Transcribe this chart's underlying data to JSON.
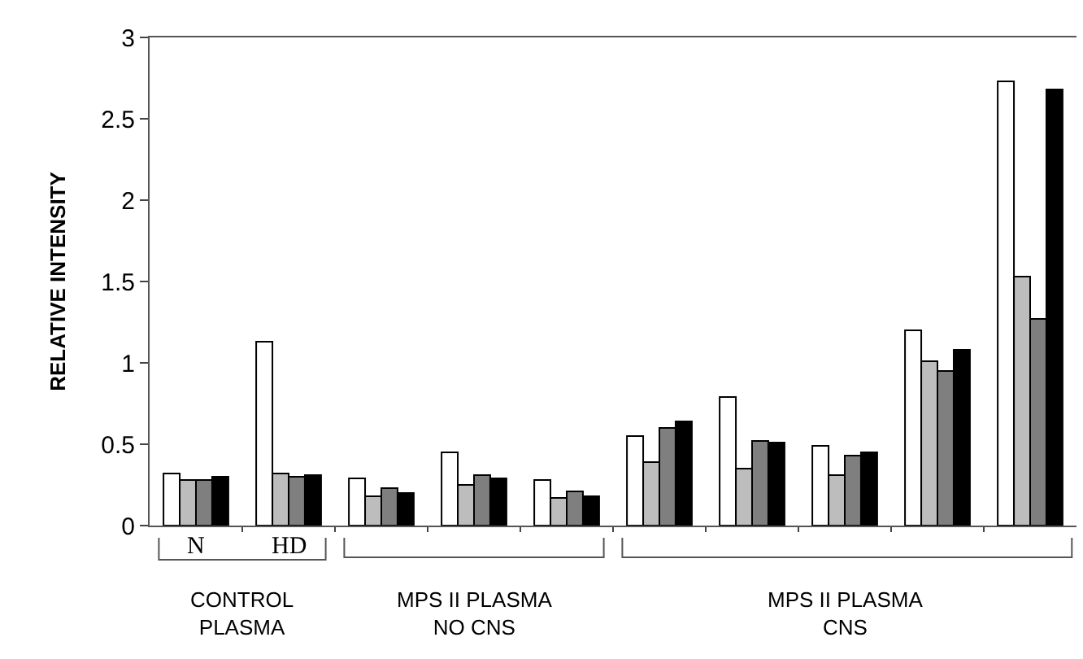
{
  "chart_data": {
    "type": "bar",
    "ylabel": "RELATIVE INTENSITY",
    "categories": [
      null,
      null,
      null,
      null,
      null,
      null,
      null,
      null,
      null,
      null
    ],
    "series": [
      {
        "color": "#ffffff",
        "values": [
          0.32,
          1.13,
          0.29,
          0.45,
          0.28,
          0.55,
          0.79,
          0.49,
          1.2,
          2.73
        ]
      },
      {
        "color": "#bdbdbd",
        "values": [
          0.28,
          0.32,
          0.18,
          0.25,
          0.17,
          0.39,
          0.35,
          0.31,
          1.01,
          1.53
        ]
      },
      {
        "color": "#7f7f7f",
        "values": [
          0.28,
          0.3,
          0.23,
          0.31,
          0.21,
          0.6,
          0.52,
          0.43,
          0.95,
          1.27
        ]
      },
      {
        "color": "#000000",
        "values": [
          0.3,
          0.31,
          0.2,
          0.29,
          0.18,
          0.64,
          0.51,
          0.45,
          1.08,
          2.68
        ]
      }
    ],
    "ylim": [
      0,
      3
    ],
    "yticks": [
      0,
      0.5,
      1,
      1.5,
      2,
      2.5,
      3
    ],
    "annotations": [
      "N",
      "HD",
      "CONTROL\nPLASMA",
      "MPS II PLASMA\nNO CNS",
      "MPS II PLASMA\nCNS"
    ]
  }
}
